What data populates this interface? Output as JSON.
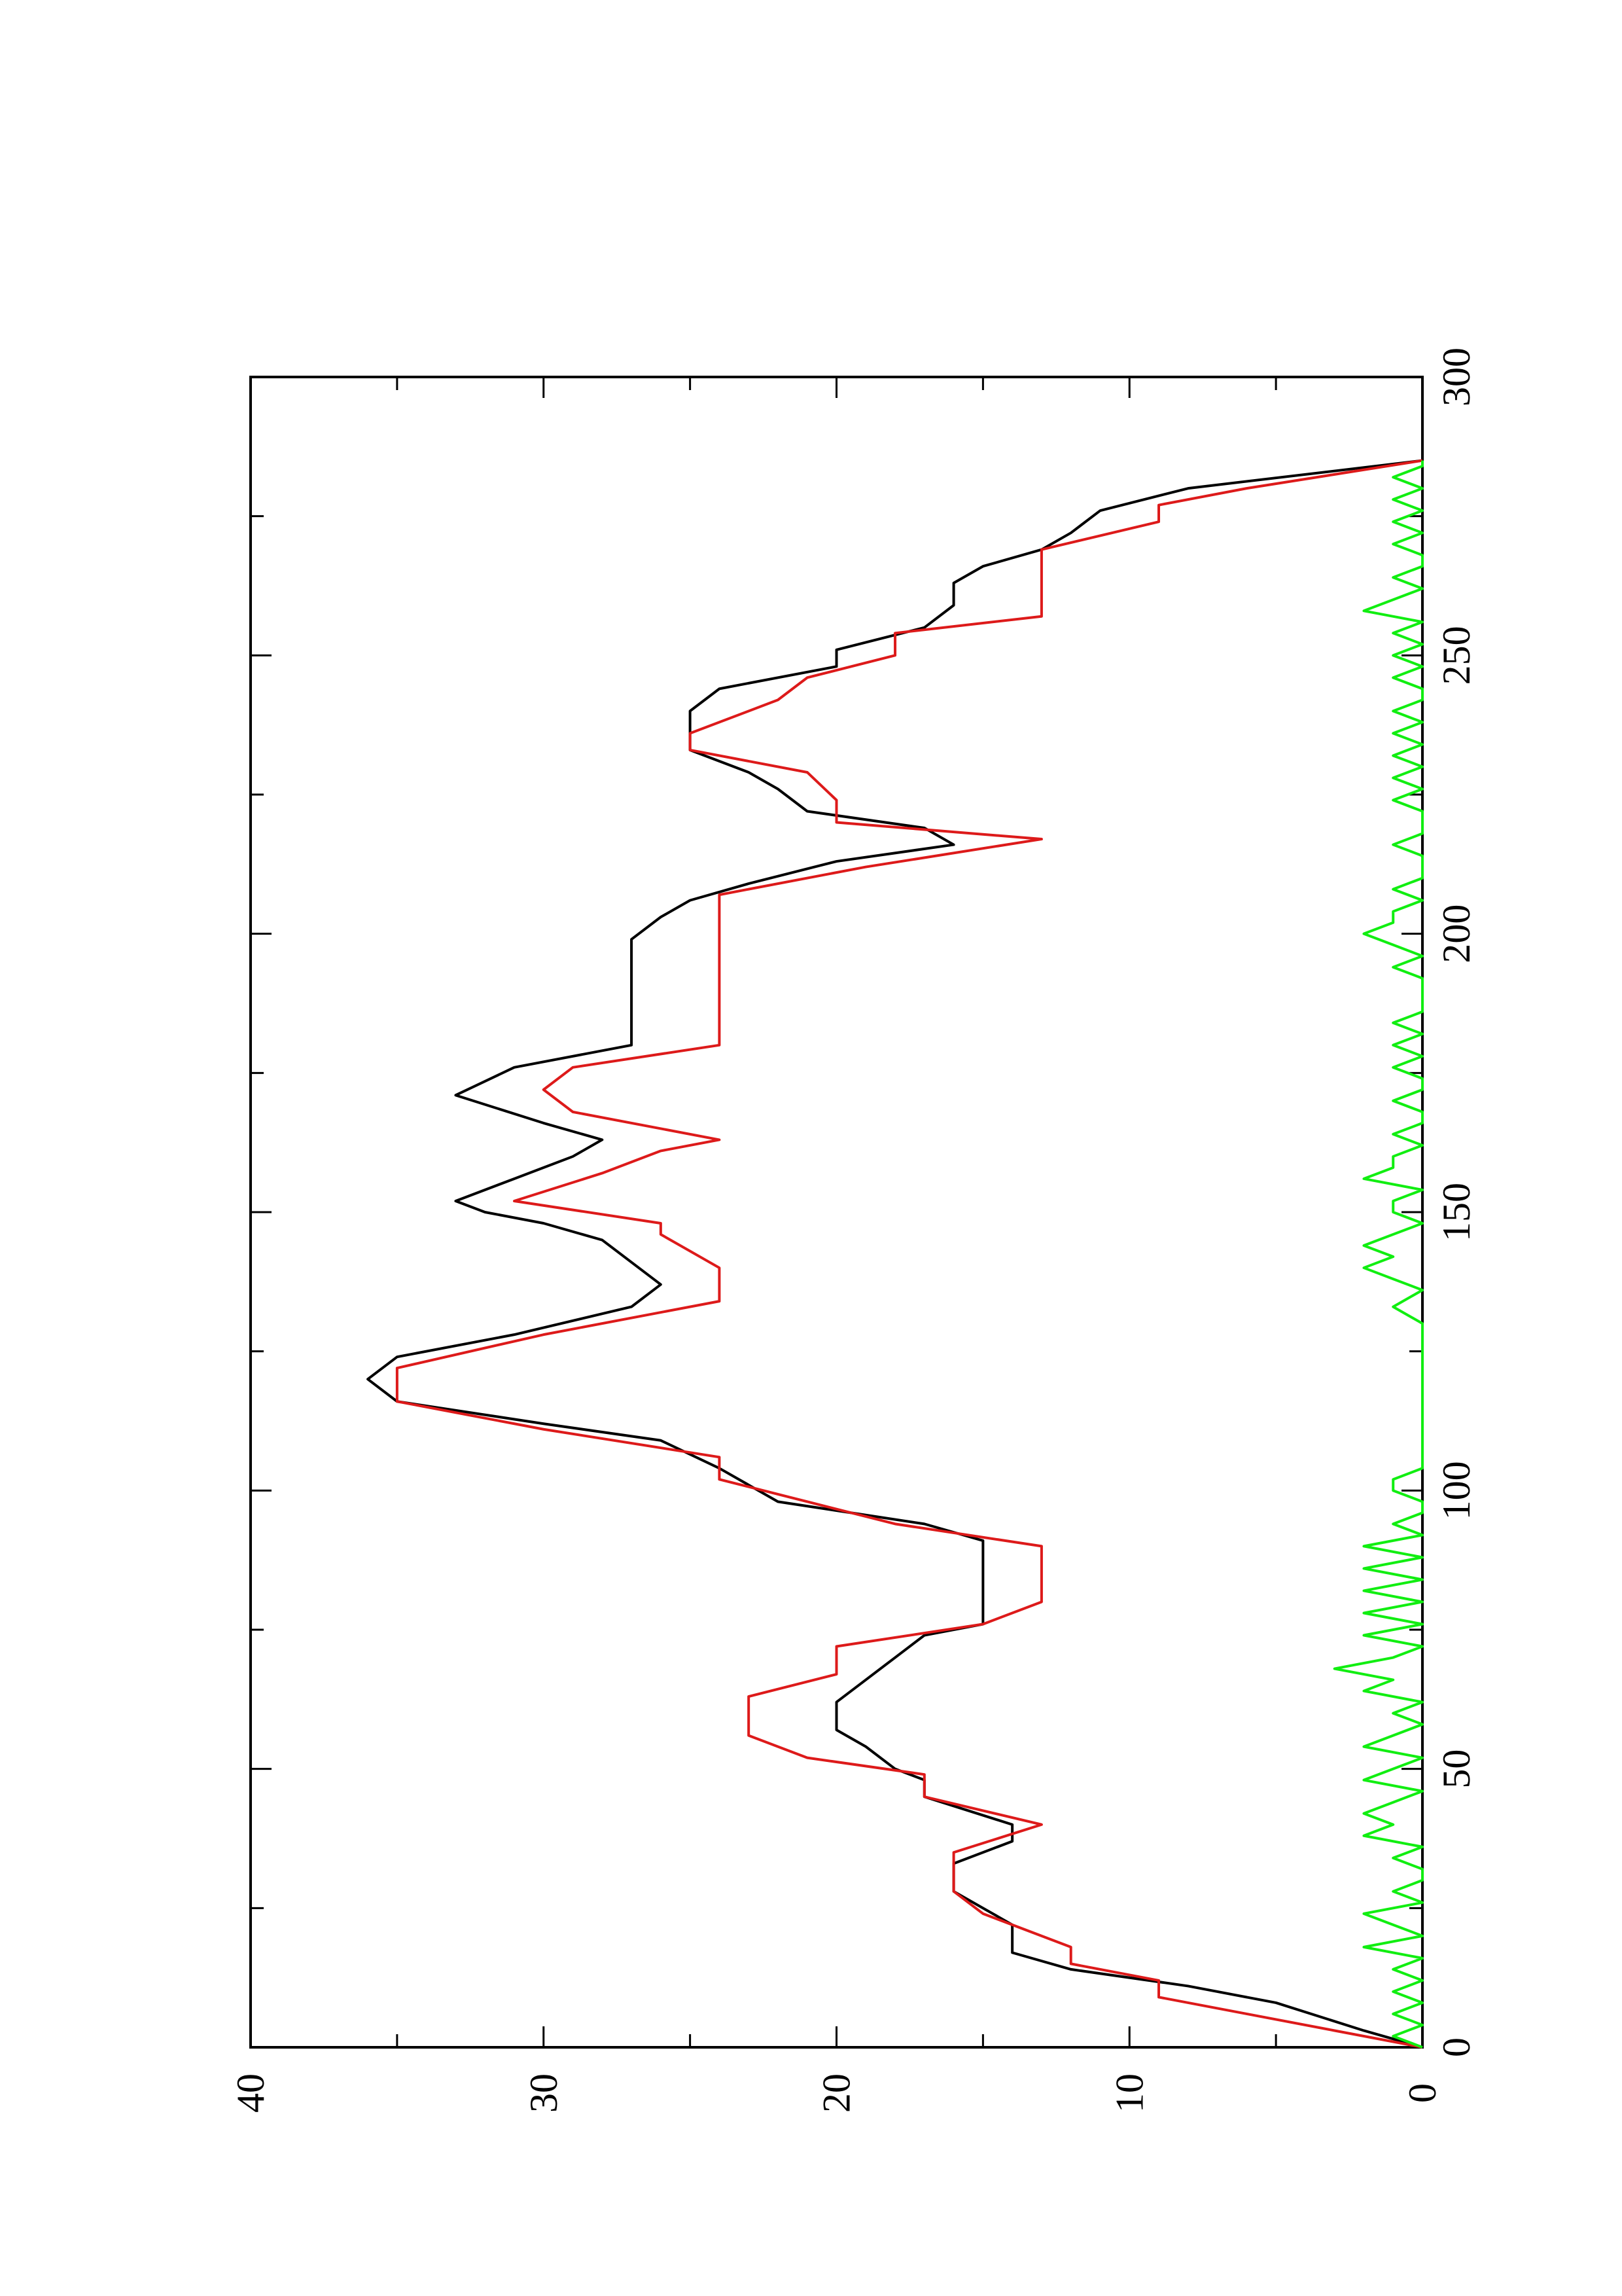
{
  "chart_data": {
    "type": "line",
    "orientation": "rotated-90-ccw",
    "title": "",
    "xlabel": "",
    "ylabel": "",
    "xlim": [
      0,
      300
    ],
    "ylim": [
      0,
      40
    ],
    "x_ticks": [
      "0",
      "50",
      "100",
      "150",
      "200",
      "250",
      "300"
    ],
    "y_ticks": [
      "0",
      "10",
      "20",
      "30",
      "40"
    ],
    "grid": false,
    "legend": "none",
    "series": [
      {
        "color": "#000000",
        "points": [
          [
            0,
            0
          ],
          [
            3,
            2
          ],
          [
            8,
            5
          ],
          [
            11,
            8
          ],
          [
            14,
            12
          ],
          [
            17,
            14
          ],
          [
            22,
            14
          ],
          [
            25,
            15
          ],
          [
            28,
            16
          ],
          [
            33,
            16
          ],
          [
            37,
            14
          ],
          [
            40,
            14
          ],
          [
            45,
            17
          ],
          [
            48,
            17
          ],
          [
            50,
            18
          ],
          [
            54,
            19
          ],
          [
            57,
            20
          ],
          [
            62,
            20
          ],
          [
            66,
            19
          ],
          [
            70,
            18
          ],
          [
            74,
            17
          ],
          [
            76,
            15
          ],
          [
            80,
            15
          ],
          [
            84,
            15
          ],
          [
            88,
            15
          ],
          [
            91,
            15
          ],
          [
            94,
            17
          ],
          [
            98,
            22
          ],
          [
            101,
            23
          ],
          [
            104,
            24
          ],
          [
            109,
            26
          ],
          [
            112,
            30
          ],
          [
            116,
            35
          ],
          [
            120,
            36
          ],
          [
            124,
            35
          ],
          [
            128,
            31
          ],
          [
            133,
            27
          ],
          [
            137,
            26
          ],
          [
            141,
            27
          ],
          [
            145,
            28
          ],
          [
            148,
            30
          ],
          [
            150,
            32
          ],
          [
            152,
            33
          ],
          [
            156,
            31
          ],
          [
            160,
            29
          ],
          [
            163,
            28
          ],
          [
            166,
            30
          ],
          [
            171,
            33
          ],
          [
            176,
            31
          ],
          [
            180,
            27
          ],
          [
            186,
            27
          ],
          [
            195,
            27
          ],
          [
            199,
            27
          ],
          [
            203,
            26
          ],
          [
            206,
            25
          ],
          [
            209,
            23
          ],
          [
            213,
            20
          ],
          [
            216,
            16
          ],
          [
            219,
            17
          ],
          [
            222,
            21
          ],
          [
            226,
            22
          ],
          [
            229,
            23
          ],
          [
            233,
            25
          ],
          [
            236,
            25
          ],
          [
            240,
            25
          ],
          [
            244,
            24
          ],
          [
            248,
            20
          ],
          [
            251,
            20
          ],
          [
            255,
            17
          ],
          [
            259,
            16
          ],
          [
            263,
            16
          ],
          [
            266,
            15
          ],
          [
            269,
            13
          ],
          [
            272,
            12
          ],
          [
            276,
            11
          ],
          [
            280,
            8
          ],
          [
            285,
            0
          ]
        ]
      },
      {
        "color": "#dd1a1a",
        "points": [
          [
            0,
            0
          ],
          [
            3,
            3
          ],
          [
            6,
            6
          ],
          [
            9,
            9
          ],
          [
            12,
            9
          ],
          [
            15,
            12
          ],
          [
            18,
            12
          ],
          [
            24,
            15
          ],
          [
            28,
            16
          ],
          [
            35,
            16
          ],
          [
            40,
            13
          ],
          [
            45,
            17
          ],
          [
            49,
            17
          ],
          [
            52,
            21
          ],
          [
            56,
            23
          ],
          [
            63,
            23
          ],
          [
            67,
            20
          ],
          [
            72,
            20
          ],
          [
            76,
            15
          ],
          [
            80,
            13
          ],
          [
            90,
            13
          ],
          [
            94,
            18
          ],
          [
            98,
            21
          ],
          [
            102,
            24
          ],
          [
            106,
            24
          ],
          [
            111,
            30
          ],
          [
            116,
            35
          ],
          [
            122,
            35
          ],
          [
            128,
            30
          ],
          [
            134,
            24
          ],
          [
            140,
            24
          ],
          [
            146,
            26
          ],
          [
            148,
            26
          ],
          [
            152,
            31
          ],
          [
            157,
            28
          ],
          [
            161,
            26
          ],
          [
            163,
            24
          ],
          [
            168,
            29
          ],
          [
            172,
            30
          ],
          [
            176,
            29
          ],
          [
            180,
            24
          ],
          [
            186,
            24
          ],
          [
            200,
            24
          ],
          [
            207,
            24
          ],
          [
            212,
            19
          ],
          [
            217,
            13
          ],
          [
            220,
            20
          ],
          [
            224,
            20
          ],
          [
            229,
            21
          ],
          [
            233,
            25
          ],
          [
            236,
            25
          ],
          [
            242,
            22
          ],
          [
            246,
            21
          ],
          [
            250,
            18
          ],
          [
            254,
            18
          ],
          [
            257,
            13
          ],
          [
            260,
            13
          ],
          [
            266,
            13
          ],
          [
            269,
            13
          ],
          [
            274,
            9
          ],
          [
            277,
            9
          ],
          [
            280,
            6
          ],
          [
            285,
            0
          ]
        ]
      },
      {
        "color": "#11ee11",
        "points": [
          [
            0,
            0
          ],
          [
            2,
            1
          ],
          [
            4,
            0
          ],
          [
            6,
            1
          ],
          [
            8,
            0
          ],
          [
            10,
            1
          ],
          [
            12,
            0
          ],
          [
            14,
            1
          ],
          [
            16,
            0
          ],
          [
            18,
            2
          ],
          [
            20,
            0
          ],
          [
            22,
            1
          ],
          [
            24,
            2
          ],
          [
            26,
            0
          ],
          [
            28,
            1
          ],
          [
            30,
            0
          ],
          [
            32,
            0
          ],
          [
            34,
            1
          ],
          [
            36,
            0
          ],
          [
            38,
            2
          ],
          [
            40,
            1
          ],
          [
            42,
            2
          ],
          [
            44,
            1
          ],
          [
            46,
            0
          ],
          [
            48,
            2
          ],
          [
            50,
            1
          ],
          [
            52,
            0
          ],
          [
            54,
            2
          ],
          [
            56,
            1
          ],
          [
            58,
            0
          ],
          [
            60,
            1
          ],
          [
            62,
            0
          ],
          [
            64,
            2
          ],
          [
            66,
            1
          ],
          [
            68,
            3
          ],
          [
            70,
            1
          ],
          [
            72,
            0
          ],
          [
            74,
            2
          ],
          [
            76,
            0
          ],
          [
            78,
            2
          ],
          [
            80,
            0
          ],
          [
            82,
            2
          ],
          [
            84,
            0
          ],
          [
            86,
            2
          ],
          [
            88,
            0
          ],
          [
            90,
            2
          ],
          [
            92,
            0
          ],
          [
            94,
            1
          ],
          [
            96,
            0
          ],
          [
            98,
            0
          ],
          [
            100,
            1
          ],
          [
            102,
            1
          ],
          [
            104,
            0
          ],
          [
            106,
            0
          ],
          [
            110,
            0
          ],
          [
            115,
            0
          ],
          [
            120,
            0
          ],
          [
            125,
            0
          ],
          [
            130,
            0
          ],
          [
            133,
            1
          ],
          [
            136,
            0
          ],
          [
            138,
            1
          ],
          [
            140,
            2
          ],
          [
            142,
            1
          ],
          [
            144,
            2
          ],
          [
            146,
            1
          ],
          [
            148,
            0
          ],
          [
            150,
            1
          ],
          [
            152,
            1
          ],
          [
            154,
            0
          ],
          [
            156,
            2
          ],
          [
            158,
            1
          ],
          [
            160,
            1
          ],
          [
            162,
            0
          ],
          [
            164,
            1
          ],
          [
            166,
            0
          ],
          [
            168,
            0
          ],
          [
            170,
            1
          ],
          [
            172,
            0
          ],
          [
            174,
            0
          ],
          [
            176,
            1
          ],
          [
            178,
            0
          ],
          [
            180,
            1
          ],
          [
            182,
            0
          ],
          [
            184,
            1
          ],
          [
            186,
            0
          ],
          [
            188,
            0
          ],
          [
            190,
            0
          ],
          [
            192,
            0
          ],
          [
            194,
            1
          ],
          [
            196,
            0
          ],
          [
            198,
            1
          ],
          [
            200,
            2
          ],
          [
            202,
            1
          ],
          [
            204,
            1
          ],
          [
            206,
            0
          ],
          [
            208,
            1
          ],
          [
            210,
            0
          ],
          [
            212,
            0
          ],
          [
            214,
            0
          ],
          [
            216,
            1
          ],
          [
            218,
            0
          ],
          [
            220,
            0
          ],
          [
            222,
            0
          ],
          [
            224,
            1
          ],
          [
            226,
            0
          ],
          [
            228,
            1
          ],
          [
            230,
            0
          ],
          [
            232,
            1
          ],
          [
            234,
            0
          ],
          [
            236,
            1
          ],
          [
            238,
            0
          ],
          [
            240,
            1
          ],
          [
            242,
            0
          ],
          [
            244,
            0
          ],
          [
            246,
            1
          ],
          [
            248,
            0
          ],
          [
            250,
            1
          ],
          [
            252,
            0
          ],
          [
            254,
            1
          ],
          [
            256,
            0
          ],
          [
            258,
            2
          ],
          [
            260,
            1
          ],
          [
            262,
            0
          ],
          [
            264,
            1
          ],
          [
            266,
            0
          ],
          [
            268,
            0
          ],
          [
            270,
            1
          ],
          [
            272,
            0
          ],
          [
            274,
            1
          ],
          [
            276,
            0
          ],
          [
            278,
            1
          ],
          [
            280,
            0
          ],
          [
            282,
            1
          ],
          [
            284,
            0
          ],
          [
            285,
            0
          ]
        ]
      }
    ]
  }
}
